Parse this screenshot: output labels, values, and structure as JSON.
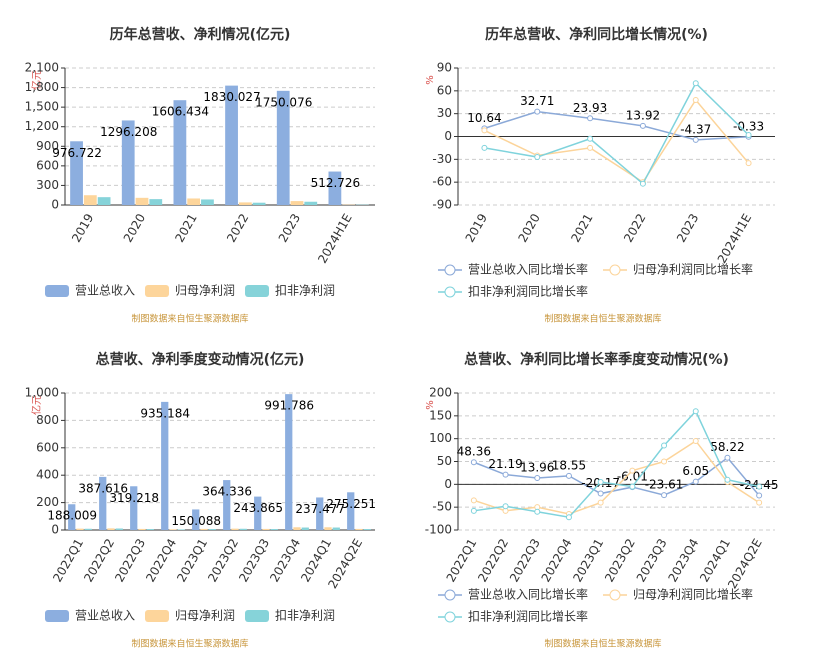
{
  "chart_data": [
    {
      "type": "bar",
      "title": "历年总营收、净利情况(亿元)",
      "y_label": "亿元",
      "footer": "制图数据来自恒生聚源数据库",
      "categories": [
        "2019",
        "2020",
        "2021",
        "2022",
        "2023",
        "2024H1E"
      ],
      "series": [
        {
          "name": "营业总收入",
          "color": "#8caedf",
          "data_labels": true,
          "values": [
            976.722,
            1296.208,
            1606.434,
            1830.027,
            1750.076,
            512.726
          ]
        },
        {
          "name": "归母净利润",
          "color": "#fdd59b",
          "values": [
            150,
            110,
            100,
            40,
            60,
            5
          ]
        },
        {
          "name": "扣非净利润",
          "color": "#86d3d9",
          "values": [
            120,
            90,
            85,
            35,
            50,
            5
          ]
        }
      ],
      "ylim": [
        0,
        2100
      ],
      "yticks": [
        0,
        300,
        600,
        900,
        {
          "value": 1200,
          "label": "1,200"
        },
        {
          "value": 1500,
          "label": "1,500"
        },
        {
          "value": 1800,
          "label": "1,800"
        },
        {
          "value": 2100,
          "label": "2,100"
        }
      ],
      "grid": true
    },
    {
      "type": "line",
      "title": "历年总营收、净利同比增长情况(%)",
      "y_label": "%",
      "footer": "制图数据来自恒生聚源数据库",
      "categories": [
        "2019",
        "2020",
        "2021",
        "2022",
        "2023",
        "2024H1E"
      ],
      "series": [
        {
          "name": "营业总收入同比增长率",
          "color": "#8ba9d8",
          "data_labels": true,
          "values": [
            10.64,
            32.71,
            23.93,
            13.92,
            -4.37,
            -0.33
          ]
        },
        {
          "name": "归母净利润同比增长率",
          "color": "#fcd49a",
          "values": [
            8,
            -25,
            -15,
            -60,
            48,
            -35
          ]
        },
        {
          "name": "扣非净利润同比增长率",
          "color": "#7fd3dc",
          "values": [
            -15,
            -27,
            -3,
            -62,
            70,
            2
          ]
        }
      ],
      "ylim": [
        -90,
        90
      ],
      "yticks": [
        -90,
        -60,
        -30,
        0,
        30,
        60,
        90
      ],
      "grid": true
    },
    {
      "type": "bar",
      "title": "总营收、净利季度变动情况(亿元)",
      "y_label": "亿元",
      "footer": "制图数据来自恒生聚源数据库",
      "categories": [
        "2022Q1",
        "2022Q2",
        "2022Q3",
        "2022Q4",
        "2023Q1",
        "2023Q2",
        "2023Q3",
        "2023Q4",
        "2024Q1",
        "2024Q2E"
      ],
      "series": [
        {
          "name": "营业总收入",
          "color": "#8caedf",
          "data_labels": true,
          "values": [
            188.009,
            387.616,
            319.218,
            935.184,
            150.088,
            364.336,
            243.865,
            991.786,
            237.477,
            275.251
          ]
        },
        {
          "name": "归母净利润",
          "color": "#fdd59b",
          "values": [
            10,
            12,
            8,
            5,
            8,
            10,
            8,
            20,
            20,
            8
          ]
        },
        {
          "name": "扣非净利润",
          "color": "#86d3d9",
          "values": [
            9,
            11,
            7,
            4,
            7,
            9,
            7,
            18,
            18,
            7
          ]
        }
      ],
      "ylim": [
        0,
        1000
      ],
      "yticks": [
        0,
        200,
        400,
        600,
        800,
        {
          "value": 1000,
          "label": "1,000"
        }
      ],
      "grid": true
    },
    {
      "type": "line",
      "title": "总营收、净利同比增长率季度变动情况(%)",
      "y_label": "%",
      "footer": "制图数据来自恒生聚源数据库",
      "categories": [
        "2022Q1",
        "2022Q2",
        "2022Q3",
        "2022Q4",
        "2023Q1",
        "2023Q2",
        "2023Q3",
        "2023Q4",
        "2024Q1",
        "2024Q2E"
      ],
      "series": [
        {
          "name": "营业总收入同比增长率",
          "color": "#8ba9d8",
          "data_labels": true,
          "values": [
            48.36,
            21.19,
            13.96,
            18.55,
            -20.17,
            -6.01,
            -23.61,
            6.05,
            58.22,
            -24.45
          ]
        },
        {
          "name": "归母净利润同比增长率",
          "color": "#fcd49a",
          "values": [
            -35,
            -58,
            -50,
            -65,
            -40,
            30,
            50,
            95,
            5,
            -40
          ]
        },
        {
          "name": "扣非净利润同比增长率",
          "color": "#7fd3dc",
          "values": [
            -58,
            -48,
            -60,
            -72,
            5,
            -5,
            85,
            160,
            10,
            -5
          ]
        }
      ],
      "ylim": [
        -100,
        200
      ],
      "yticks": [
        -100,
        -50,
        0,
        50,
        100,
        150,
        200
      ],
      "grid": true
    }
  ]
}
